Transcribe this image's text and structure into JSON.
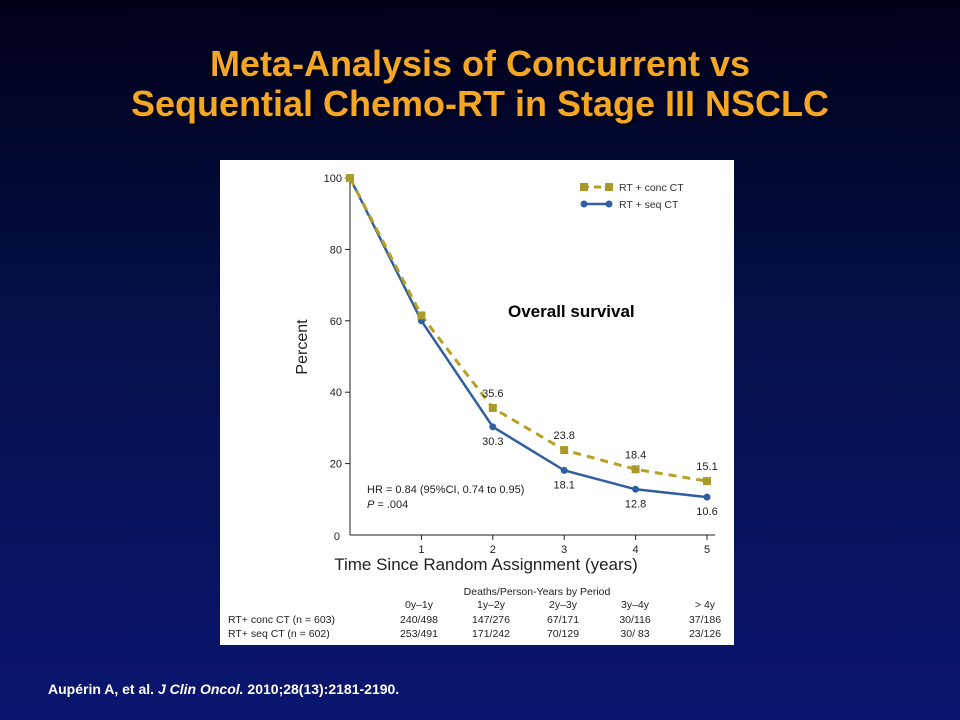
{
  "slide": {
    "title_line1": "Meta-Analysis of Concurrent vs",
    "title_line2": "Sequential Chemo-RT in Stage III NSCLC"
  },
  "colors": {
    "conc": "#b8a025",
    "conc_marker": "#a99a2a",
    "seq": "#2f5f9e",
    "title": "#f5a623"
  },
  "chart_data": {
    "type": "line",
    "xlabel": "Time Since Random Assignment (years)",
    "ylabel": "Percent",
    "xlim": [
      0,
      5
    ],
    "ylim": [
      0,
      100
    ],
    "x_ticks": [
      "1",
      "2",
      "3",
      "4",
      "5"
    ],
    "y_ticks": [
      "100",
      "80",
      "60",
      "40",
      "20",
      "0"
    ],
    "annotation": "Overall survival",
    "series": [
      {
        "name": "RT + conc CT",
        "style": "dashed-square",
        "x": [
          0,
          1,
          2,
          3,
          4,
          5
        ],
        "y": [
          100,
          61.5,
          35.6,
          23.8,
          18.4,
          15.1
        ],
        "labels": [
          "",
          "",
          "35.6",
          "23.8",
          "18.4",
          "15.1"
        ]
      },
      {
        "name": "RT + seq CT",
        "style": "solid-circle",
        "x": [
          0,
          1,
          2,
          3,
          4,
          5
        ],
        "y": [
          100,
          60,
          30.3,
          18.1,
          12.8,
          10.6
        ],
        "labels": [
          "",
          "",
          "30.3",
          "18.1",
          "12.8",
          "10.6"
        ]
      }
    ],
    "stats": {
      "hr": "HR = 0.84 (95%CI, 0.74 to 0.95)",
      "p_prefix": "P",
      "p_value": " = .004"
    },
    "risk_table": {
      "title": "Deaths/Person-Years by Period",
      "headers": [
        "0y–1y",
        "1y–2y",
        "2y–3y",
        "3y–4y",
        "> 4y"
      ],
      "rows": [
        {
          "label": "RT+ conc CT (n = 603)",
          "values": [
            "240/498",
            "147/276",
            "67/171",
            "30/116",
            "37/186"
          ]
        },
        {
          "label": "RT+ seq CT (n = 602)",
          "values": [
            "253/491",
            "171/242",
            "70/129",
            "30/ 83",
            "23/126"
          ]
        }
      ]
    }
  },
  "citation": {
    "authors": "Aupérin A, et al.",
    "journal": "J Clin Oncol.",
    "details": "2010;28(13):2181-2190."
  }
}
